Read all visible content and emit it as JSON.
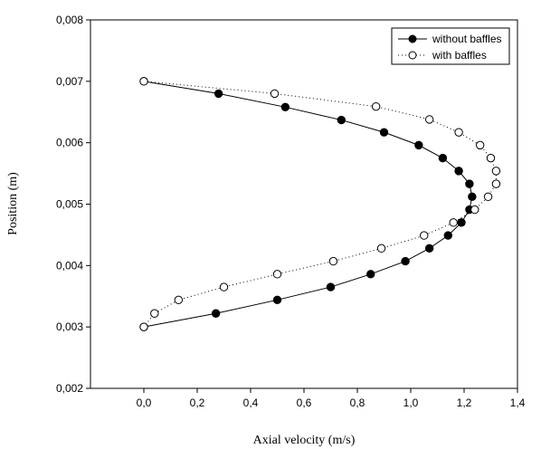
{
  "chart_data": {
    "type": "scatter",
    "title": "",
    "xlabel": "Axial velocity (m/s)",
    "ylabel": "Position (m)",
    "xlim": [
      -0.2,
      1.4
    ],
    "ylim": [
      0.002,
      0.008
    ],
    "x_ticks": [
      "0,0",
      "0,2",
      "0,4",
      "0,6",
      "0,8",
      "1,0",
      "1,2",
      "1,4"
    ],
    "y_ticks": [
      "0,002",
      "0,003",
      "0,004",
      "0,005",
      "0,006",
      "0,007",
      "0,008"
    ],
    "grid": false,
    "legend_position": "top-right",
    "series": [
      {
        "name": "without baffles",
        "marker": "filled-circle",
        "line": "solid",
        "color": "#000000",
        "points": [
          [
            0.0,
            0.007
          ],
          [
            0.28,
            0.0068
          ],
          [
            0.53,
            0.00658
          ],
          [
            0.74,
            0.00637
          ],
          [
            0.9,
            0.00617
          ],
          [
            1.03,
            0.00596
          ],
          [
            1.12,
            0.00575
          ],
          [
            1.18,
            0.00554
          ],
          [
            1.22,
            0.00533
          ],
          [
            1.23,
            0.00512
          ],
          [
            1.22,
            0.00491
          ],
          [
            1.19,
            0.0047
          ],
          [
            1.14,
            0.00449
          ],
          [
            1.07,
            0.00428
          ],
          [
            0.98,
            0.00407
          ],
          [
            0.85,
            0.00386
          ],
          [
            0.7,
            0.00365
          ],
          [
            0.5,
            0.00344
          ],
          [
            0.27,
            0.00322
          ],
          [
            0.0,
            0.003
          ]
        ]
      },
      {
        "name": "with baffles",
        "marker": "open-circle",
        "line": "dotted",
        "color": "#000000",
        "points": [
          [
            0.0,
            0.007
          ],
          [
            0.49,
            0.0068
          ],
          [
            0.87,
            0.00659
          ],
          [
            1.07,
            0.00638
          ],
          [
            1.18,
            0.00617
          ],
          [
            1.26,
            0.00596
          ],
          [
            1.3,
            0.00575
          ],
          [
            1.32,
            0.00554
          ],
          [
            1.32,
            0.00533
          ],
          [
            1.29,
            0.00512
          ],
          [
            1.24,
            0.00491
          ],
          [
            1.16,
            0.0047
          ],
          [
            1.05,
            0.00449
          ],
          [
            0.89,
            0.00428
          ],
          [
            0.71,
            0.00407
          ],
          [
            0.5,
            0.00386
          ],
          [
            0.3,
            0.00365
          ],
          [
            0.13,
            0.00344
          ],
          [
            0.04,
            0.00322
          ],
          [
            0.0,
            0.003
          ]
        ]
      }
    ]
  }
}
